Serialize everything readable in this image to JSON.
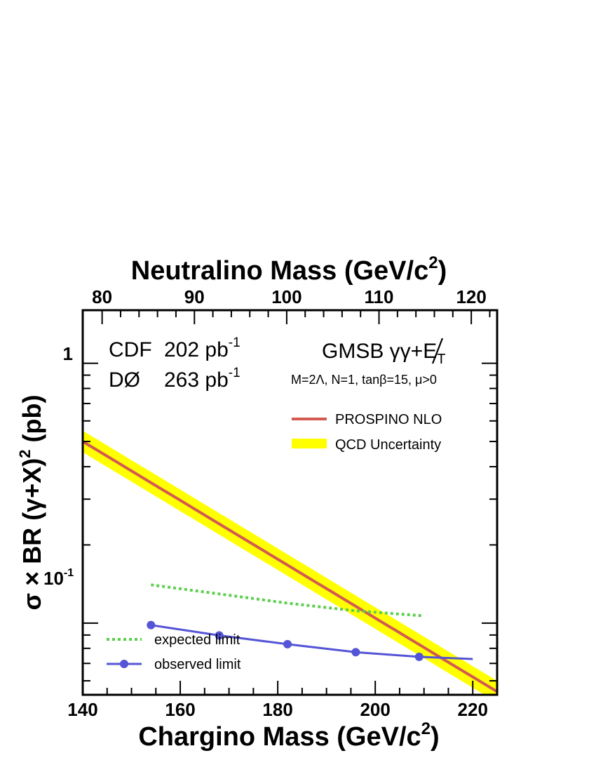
{
  "chart_data": {
    "type": "line",
    "top_axis": {
      "label": "Neutralino Mass (GeV/c",
      "label_sup": "2",
      "label_end": ")",
      "ticks": [
        80,
        90,
        100,
        110,
        120
      ],
      "range": [
        77.9,
        122.8
      ]
    },
    "x_axis": {
      "label": "Chargino Mass (GeV/c",
      "label_sup": "2",
      "label_end": ")",
      "ticks": [
        140,
        160,
        180,
        200,
        220
      ],
      "range": [
        140,
        225
      ],
      "minor_step": 5
    },
    "y_axis": {
      "label_pre": "σ × BR (γ+X)",
      "label_sup": "2",
      "label_end": " (pb)",
      "scale": "log",
      "range": [
        0.053,
        1.6
      ],
      "tick_labels": [
        {
          "value": 1,
          "text": "1",
          "sup": ""
        },
        {
          "value": 0.1,
          "text": "10",
          "sup": "-1"
        }
      ]
    },
    "annotations": {
      "exp1_name": "CDF",
      "exp1_lumi": "202 pb",
      "exp1_sup": "-1",
      "exp2_name": "DØ",
      "exp2_lumi": "263 pb",
      "exp2_sup": "-1",
      "model_title": "GMSB γγ+E",
      "model_sub": "T",
      "model_params": "M=2Λ, N=1, tanβ=15, μ>0"
    },
    "legend": {
      "theory": "PROSPINO NLO",
      "band": "QCD Uncertainty",
      "expected": "expected limit",
      "observed": "observed limit"
    },
    "series": [
      {
        "name": "PROSPINO NLO",
        "color": "#d35a50",
        "x": [
          140,
          225
        ],
        "y": [
          0.5,
          0.0545
        ],
        "band_color": "#ffff00",
        "band_factor": 1.1
      },
      {
        "name": "expected limit",
        "color": "#5ccf4e",
        "style": "dotted",
        "x": [
          154,
          168,
          182,
          196,
          210
        ],
        "y": [
          0.1404,
          0.1295,
          0.1194,
          0.1115,
          0.1067
        ]
      },
      {
        "name": "observed limit",
        "color": "#5454d6",
        "markers": true,
        "x": [
          154,
          168,
          182,
          196,
          209,
          220
        ],
        "y": [
          0.0983,
          0.0897,
          0.083,
          0.0773,
          0.0742,
          0.0728
        ]
      }
    ]
  }
}
